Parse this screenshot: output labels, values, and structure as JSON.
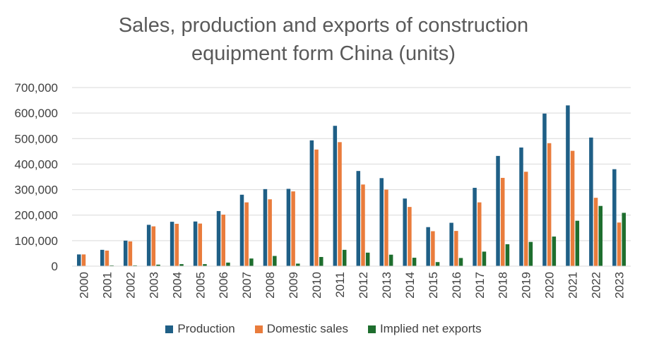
{
  "chart_data": {
    "type": "bar",
    "title_line1": "Sales, production and exports of construction",
    "title_line2": "equipment form China (units)",
    "xlabel": "",
    "ylabel": "",
    "ylim": [
      0,
      700000
    ],
    "yticks": [
      "700,000",
      "600,000",
      "500,000",
      "400,000",
      "300,000",
      "200,000",
      "100,000",
      "0"
    ],
    "ytick_values": [
      700000,
      600000,
      500000,
      400000,
      300000,
      200000,
      100000,
      0
    ],
    "categories": [
      "2000",
      "2001",
      "2002",
      "2003",
      "2004",
      "2005",
      "2006",
      "2007",
      "2008",
      "2009",
      "2010",
      "2011",
      "2012",
      "2013",
      "2014",
      "2015",
      "2016",
      "2017",
      "2018",
      "2019",
      "2020",
      "2021",
      "2022",
      "2023"
    ],
    "series": [
      {
        "name": "Production",
        "color": "#1f5f86",
        "values": [
          46000,
          64000,
          100000,
          162000,
          174000,
          175000,
          216000,
          280000,
          302000,
          303000,
          493000,
          550000,
          373000,
          345000,
          265000,
          153000,
          170000,
          307000,
          432000,
          465000,
          598000,
          630000,
          504000,
          380000
        ]
      },
      {
        "name": "Domestic sales",
        "color": "#e97c3c",
        "values": [
          46000,
          61000,
          97000,
          156000,
          166000,
          167000,
          202000,
          250000,
          262000,
          293000,
          457000,
          486000,
          320000,
          300000,
          232000,
          137000,
          138000,
          250000,
          346000,
          370000,
          482000,
          452000,
          268000,
          171000
        ]
      },
      {
        "name": "Implied net exports",
        "color": "#1e6e2e",
        "values": [
          0,
          3000,
          3000,
          6000,
          8000,
          8000,
          14000,
          30000,
          40000,
          10000,
          36000,
          64000,
          53000,
          45000,
          33000,
          16000,
          32000,
          57000,
          86000,
          95000,
          116000,
          178000,
          236000,
          209000
        ]
      }
    ],
    "grid": true,
    "legend_position": "bottom"
  }
}
